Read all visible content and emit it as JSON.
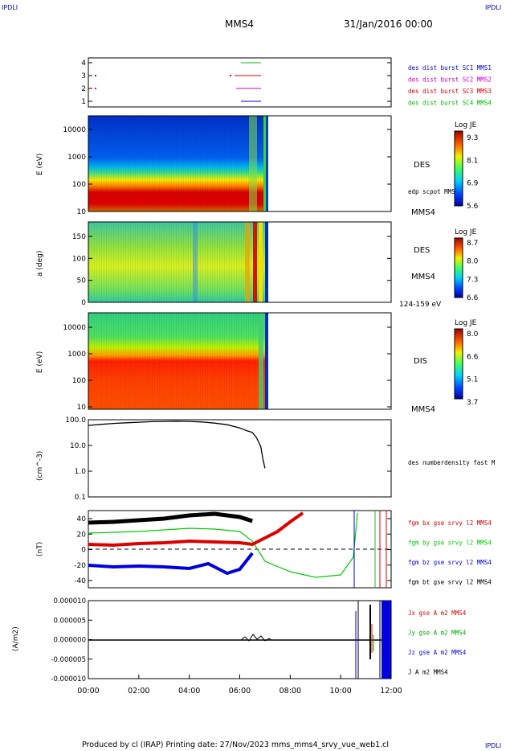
{
  "corner_left": "IPDLI",
  "corner_right": "IPDLI",
  "spacecraft": "MMS4",
  "date": "31/Jan/2016 00:00",
  "footer": "Produced by cl (IRAP)   Printing date: 27/Nov/2023   mms_mms4_srvy_vue_web1.cl",
  "chart_data": [
    {
      "type": "line",
      "panel": "burst-availability",
      "ytick_labels": [
        "1",
        "2",
        "3",
        "4"
      ],
      "series": [
        {
          "name": "des dist burst SC1 MMS1",
          "color": "#0000cc",
          "y": 1
        },
        {
          "name": "des dist burst SC2 MMS2",
          "color": "#cc00cc",
          "y": 2
        },
        {
          "name": "des dist burst SC3 MMS3",
          "color": "#dd0000",
          "y": 3
        },
        {
          "name": "des dist burst SC4 MMS4",
          "color": "#00bb00",
          "y": 4
        }
      ]
    },
    {
      "type": "heatmap",
      "panel": "des-energy",
      "ylabel": "E (eV)",
      "ytick_labels": [
        "10",
        "100",
        "1000",
        "10000"
      ],
      "label": "DES",
      "overlay": "edp scpot MMS4",
      "sc": "MMS4",
      "colorbar_title": "Log JE",
      "colorbar_ticks": [
        "9.3",
        "8.1",
        "6.9",
        "5.6"
      ]
    },
    {
      "type": "heatmap",
      "panel": "des-pitch-angle",
      "ylabel": "a (deg)",
      "ytick_labels": [
        "0",
        "50",
        "100",
        "150"
      ],
      "label": "DES",
      "sc": "MMS4",
      "energy_range": "124-159 eV",
      "colorbar_title": "Log JE",
      "colorbar_ticks": [
        "8.7",
        "8.0",
        "7.3",
        "6.6"
      ]
    },
    {
      "type": "heatmap",
      "panel": "dis-energy",
      "ylabel": "E (eV)",
      "ytick_labels": [
        "10",
        "100",
        "1000",
        "10000"
      ],
      "label": "DIS",
      "sc": "MMS4",
      "colorbar_title": "Log JE",
      "colorbar_ticks": [
        "8.0",
        "6.6",
        "5.1",
        "3.7"
      ]
    },
    {
      "type": "line",
      "panel": "density",
      "ylabel": "(cm^-3)",
      "ytick_labels": [
        "0.1",
        "1.0",
        "10.0",
        "100.0"
      ],
      "yscale": "log",
      "ylim": [
        0.1,
        100
      ],
      "series": [
        {
          "name": "des numberdensity fast M",
          "color": "#000000",
          "x": [
            "00:00",
            "00:30",
            "01:00",
            "01:30",
            "02:00",
            "02:30",
            "03:00",
            "03:30",
            "04:00",
            "04:30",
            "05:00",
            "05:30",
            "06:00",
            "06:15",
            "06:30",
            "06:40",
            "06:50",
            "06:55",
            "07:00"
          ],
          "y": [
            60,
            66,
            72,
            76,
            80,
            84,
            86,
            88,
            86,
            82,
            74,
            64,
            48,
            38,
            32,
            20,
            9,
            3,
            1.3
          ]
        }
      ]
    },
    {
      "type": "line",
      "panel": "magnetic-field",
      "ylabel": "(nT)",
      "ytick_labels": [
        "-40",
        "-20",
        "0",
        "20",
        "40"
      ],
      "ylim": [
        -48,
        48
      ],
      "series": [
        {
          "name": "fgm bx gse srvy l2 MMS4",
          "color": "#dd0000",
          "x": [
            "00:00",
            "01:00",
            "02:00",
            "03:00",
            "04:00",
            "05:00",
            "06:00",
            "06:30",
            "07:00",
            "07:30",
            "08:00",
            "08:30"
          ],
          "y": [
            6,
            5,
            7,
            8,
            10,
            9,
            8,
            6,
            14,
            22,
            34,
            45
          ]
        },
        {
          "name": "fgm by gse srvy l2 MMS4",
          "color": "#00cc00",
          "x": [
            "00:00",
            "01:00",
            "02:00",
            "03:00",
            "04:00",
            "05:00",
            "06:00",
            "06:30",
            "07:00",
            "08:00",
            "09:00",
            "10:00",
            "10:30",
            "10:40"
          ],
          "y": [
            20,
            21,
            22,
            24,
            26,
            25,
            22,
            10,
            -15,
            -28,
            -35,
            -32,
            -10,
            45
          ]
        },
        {
          "name": "fgm bz gse srvy l2 MMS4",
          "color": "#0000dd",
          "x": [
            "00:00",
            "01:00",
            "02:00",
            "03:00",
            "04:00",
            "04:45",
            "05:30",
            "06:00",
            "06:30"
          ],
          "y": [
            -20,
            -22,
            -21,
            -22,
            -24,
            -18,
            -30,
            -25,
            -5
          ]
        },
        {
          "name": "fgm bt gse srvy l2 MMS4",
          "color": "#000000",
          "x": [
            "00:00",
            "01:00",
            "02:00",
            "03:00",
            "04:00",
            "05:00",
            "06:00",
            "06:30"
          ],
          "y": [
            33,
            34,
            36,
            38,
            42,
            44,
            40,
            35
          ]
        }
      ]
    },
    {
      "type": "line",
      "panel": "current-density",
      "ylabel": "(A/m2)",
      "ytick_labels": [
        "-0.000010",
        "-0.000005",
        "0.000000",
        "0.000005",
        "0.000010"
      ],
      "ylim": [
        -1e-05,
        1e-05
      ],
      "xtick_labels": [
        "00:00",
        "02:00",
        "04:00",
        "06:00",
        "08:00",
        "10:00",
        "12:00"
      ],
      "series": [
        {
          "name": "Jx gse A m2 MMS4",
          "color": "#dd0000"
        },
        {
          "name": "Jy gse A m2 MMS4",
          "color": "#00aa00"
        },
        {
          "name": "Jz gse A m2 MMS4",
          "color": "#0000dd"
        },
        {
          "name": "J A m2 MMS4",
          "color": "#000000"
        }
      ]
    }
  ]
}
